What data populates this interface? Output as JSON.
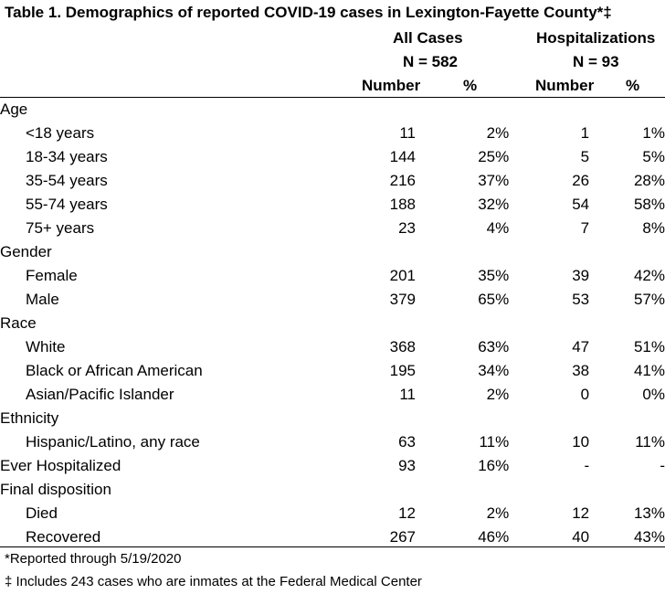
{
  "title": "Table 1. Demographics of reported COVID-19 cases in Lexington-Fayette County*‡",
  "columns": {
    "all_cases": {
      "label": "All Cases",
      "n": "N = 582"
    },
    "hospitalizations": {
      "label": "Hospitalizations",
      "n": "N = 93"
    },
    "number_label": "Number",
    "percent_label": "%"
  },
  "rows": [
    {
      "label": "Age",
      "section": true
    },
    {
      "label": "<18 years",
      "n1": "11",
      "p1": "2%",
      "n2": "1",
      "p2": "1%"
    },
    {
      "label": "18-34 years",
      "n1": "144",
      "p1": "25%",
      "n2": "5",
      "p2": "5%"
    },
    {
      "label": "35-54 years",
      "n1": "216",
      "p1": "37%",
      "n2": "26",
      "p2": "28%"
    },
    {
      "label": "55-74 years",
      "n1": "188",
      "p1": "32%",
      "n2": "54",
      "p2": "58%"
    },
    {
      "label": "75+ years",
      "n1": "23",
      "p1": "4%",
      "n2": "7",
      "p2": "8%"
    },
    {
      "label": "Gender",
      "section": true
    },
    {
      "label": "Female",
      "n1": "201",
      "p1": "35%",
      "n2": "39",
      "p2": "42%"
    },
    {
      "label": "Male",
      "n1": "379",
      "p1": "65%",
      "n2": "53",
      "p2": "57%"
    },
    {
      "label": "Race",
      "section": true
    },
    {
      "label": "White",
      "n1": "368",
      "p1": "63%",
      "n2": "47",
      "p2": "51%"
    },
    {
      "label": "Black or African American",
      "n1": "195",
      "p1": "34%",
      "n2": "38",
      "p2": "41%"
    },
    {
      "label": "Asian/Pacific Islander",
      "n1": "11",
      "p1": "2%",
      "n2": "0",
      "p2": "0%"
    },
    {
      "label": "Ethnicity",
      "section": true
    },
    {
      "label": "Hispanic/Latino, any race",
      "n1": "63",
      "p1": "11%",
      "n2": "10",
      "p2": "11%"
    },
    {
      "label": "Ever Hospitalized",
      "section": true,
      "n1": "93",
      "p1": "16%",
      "n2": "-",
      "p2": "-"
    },
    {
      "label": "Final disposition",
      "section": true
    },
    {
      "label": "Died",
      "n1": "12",
      "p1": "2%",
      "n2": "12",
      "p2": "13%"
    },
    {
      "label": "Recovered",
      "n1": "267",
      "p1": "46%",
      "n2": "40",
      "p2": "43%"
    }
  ],
  "footnotes": [
    "*Reported through 5/19/2020",
    "‡ Includes 243 cases who are inmates at the Federal Medical Center"
  ]
}
